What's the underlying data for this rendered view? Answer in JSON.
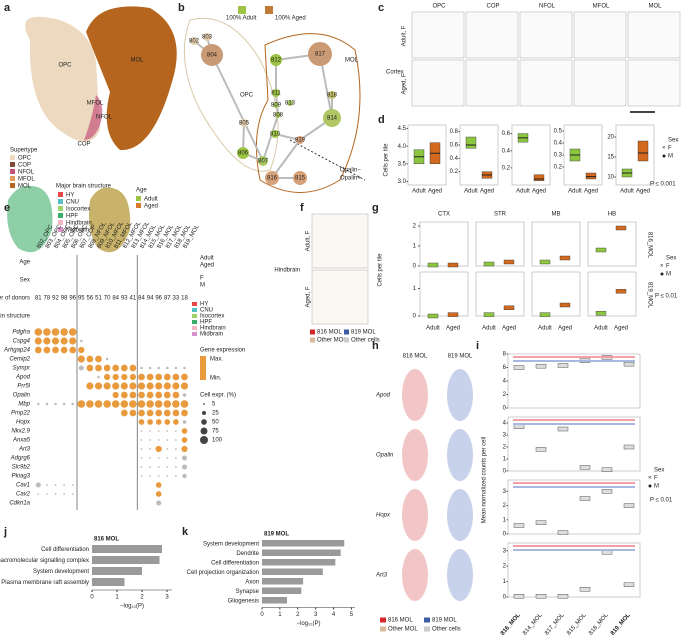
{
  "panel_labels": [
    "a",
    "b",
    "c",
    "d",
    "e",
    "f",
    "g",
    "h",
    "i",
    "j",
    "k"
  ],
  "a": {
    "clusters": [
      "OPC",
      "MOL",
      "MFOL",
      "NFOL",
      "COP"
    ],
    "supertype_title": "Supertype",
    "supertypes": [
      {
        "name": "OPC",
        "color": "#ecd9bf"
      },
      {
        "name": "COP",
        "color": "#7b4a3a"
      },
      {
        "name": "NFOL",
        "color": "#c8547a"
      },
      {
        "name": "MFOL",
        "color": "#e39a5c"
      },
      {
        "name": "MOL",
        "color": "#b5651d"
      }
    ],
    "structure_title": "Major brain structure",
    "structures": [
      {
        "name": "HY",
        "color": "#e8474a"
      },
      {
        "name": "CNU",
        "color": "#55c1c4"
      },
      {
        "name": "Isocortex",
        "color": "#9fd36b"
      },
      {
        "name": "HPF",
        "color": "#38b06c"
      },
      {
        "name": "Hindbrain",
        "color": "#f5b7c4"
      },
      {
        "name": "Midbrain",
        "color": "#d791c8"
      }
    ],
    "age_title": "Age",
    "ages": [
      {
        "name": "Adult",
        "color": "#9dc443"
      },
      {
        "name": "Aged",
        "color": "#d97a2a"
      }
    ]
  },
  "b": {
    "nodes": [
      "802",
      "803",
      "804",
      "805",
      "806",
      "807",
      "808",
      "809",
      "810",
      "811",
      "812",
      "813",
      "814",
      "815",
      "816",
      "817",
      "818",
      "819"
    ],
    "groups": [
      "OPC",
      "MOL"
    ],
    "legend": [
      "100% Adult",
      "100% Aged"
    ],
    "opalin": [
      "Opalin−",
      "Opalin+"
    ]
  },
  "c": {
    "columns": [
      "OPC",
      "COP",
      "NFOL",
      "MFOL",
      "MOL"
    ],
    "rows": [
      "Adult, F",
      "Aged, F"
    ],
    "region": "Cortex"
  },
  "d": {
    "ylabel": "Cells per tile",
    "groups": [
      "Adult",
      "Aged"
    ],
    "sex_title": "Sex",
    "sex": [
      "F",
      "M"
    ],
    "p": "P ≤ 0.001",
    "panels": [
      {
        "ylim": [
          2.9,
          4.6
        ],
        "yticks": [
          {
            "value": 3,
            "label": "3.0"
          },
          3.5,
          {
            "value": 4,
            "label": "4.0"
          },
          4.5
        ],
        "boxes": [
          [
            3.5,
            3.7,
            3.9
          ],
          [
            3.5,
            3.8,
            4.1
          ]
        ]
      },
      {
        "ylim": [
          0,
          0.9
        ],
        "yticks": [
          0.2,
          0.4,
          0.6,
          0.8
        ],
        "boxes": [
          [
            0.55,
            0.6,
            0.72
          ],
          [
            0.1,
            0.15,
            0.2
          ]
        ]
      },
      {
        "ylim": [
          0,
          0.7
        ],
        "yticks": [
          0.2,
          0.4,
          0.6
        ],
        "boxes": [
          [
            0.5,
            0.55,
            0.6
          ],
          [
            0.05,
            0.07,
            0.12
          ]
        ]
      },
      {
        "ylim": [
          0.05,
          0.55
        ],
        "yticks": [
          0.2,
          0.3,
          0.4,
          0.5
        ],
        "boxes": [
          [
            0.25,
            0.3,
            0.35
          ],
          [
            0.1,
            0.12,
            0.15
          ]
        ]
      },
      {
        "ylim": [
          8,
          23
        ],
        "yticks": [
          10,
          15,
          20
        ],
        "boxes": [
          [
            10,
            11,
            12
          ],
          [
            14,
            16,
            19
          ]
        ]
      }
    ]
  },
  "e": {
    "columns": [
      "802_OPC",
      "803_OPC",
      "804_OPC",
      "805_OPC",
      "806_OPC",
      "807_COP",
      "808_NFOL",
      "809_NFOL",
      "810_MFOL",
      "811_MFOL",
      "812_MFOL",
      "813_MFOL",
      "814_MOL",
      "815_MOL",
      "816_MOL",
      "817_MOL",
      "818_MOL",
      "819_MOL"
    ],
    "row_titles": [
      "Age",
      "Sex",
      "Number of donors",
      "Major brain structure"
    ],
    "donors": [
      81,
      78,
      92,
      98,
      96,
      95,
      56,
      51,
      70,
      84,
      93,
      41,
      84,
      94,
      96,
      87,
      33,
      18
    ],
    "age_legend": [
      "Adult",
      "Aged"
    ],
    "sex_legend": [
      "F",
      "M"
    ],
    "structures": [
      "HY",
      "CNU",
      "Isocortex",
      "HPF",
      "Hindbrain",
      "Midbrain"
    ],
    "expr_title": "Gene expression",
    "expr_range": [
      "Max.",
      "Min."
    ],
    "size_title": "Cell expr. (%)",
    "size_legend": [
      5,
      25,
      50,
      75,
      100
    ],
    "genes": [
      "Pdgfra",
      "Cspg4",
      "Arhgap24",
      "Cemip2",
      "Sympr",
      "Apod",
      "Prr5l",
      "Opalin",
      "Mbp",
      "Pmp22",
      "Hopx",
      "Nkx2.9",
      "Anxa5",
      "Art3",
      "Adgrg6",
      "Slc9b2",
      "Pkiag3",
      "Cav1",
      "Cav2",
      "Cdkn1a"
    ],
    "pct": [
      [
        90,
        90,
        90,
        90,
        90,
        0,
        0,
        0,
        0,
        0,
        0,
        0,
        0,
        0,
        0,
        0,
        0,
        0
      ],
      [
        80,
        80,
        80,
        80,
        80,
        10,
        0,
        0,
        0,
        0,
        0,
        0,
        0,
        0,
        0,
        0,
        0,
        0
      ],
      [
        70,
        70,
        70,
        70,
        70,
        60,
        0,
        0,
        0,
        0,
        0,
        0,
        0,
        0,
        0,
        0,
        0,
        0
      ],
      [
        0,
        0,
        0,
        0,
        0,
        80,
        70,
        70,
        10,
        0,
        0,
        0,
        0,
        0,
        0,
        0,
        0,
        0
      ],
      [
        0,
        0,
        0,
        0,
        0,
        40,
        70,
        70,
        70,
        70,
        70,
        70,
        10,
        10,
        10,
        10,
        10,
        10
      ],
      [
        0,
        0,
        0,
        0,
        0,
        0,
        0,
        10,
        60,
        60,
        60,
        60,
        70,
        70,
        70,
        70,
        70,
        70
      ],
      [
        0,
        0,
        0,
        0,
        0,
        0,
        80,
        80,
        80,
        80,
        80,
        80,
        80,
        80,
        80,
        80,
        80,
        80
      ],
      [
        0,
        0,
        0,
        0,
        0,
        0,
        0,
        0,
        0,
        60,
        70,
        70,
        70,
        70,
        70,
        70,
        70,
        20
      ],
      [
        10,
        10,
        10,
        10,
        10,
        90,
        90,
        90,
        90,
        90,
        90,
        90,
        90,
        90,
        90,
        90,
        90,
        90
      ],
      [
        0,
        0,
        0,
        0,
        0,
        0,
        0,
        0,
        0,
        0,
        70,
        70,
        70,
        70,
        70,
        70,
        70,
        70
      ],
      [
        0,
        0,
        0,
        0,
        0,
        0,
        0,
        0,
        0,
        0,
        0,
        0,
        50,
        50,
        50,
        50,
        50,
        20
      ],
      [
        0,
        0,
        0,
        0,
        0,
        0,
        0,
        0,
        0,
        0,
        0,
        0,
        5,
        5,
        5,
        5,
        5,
        50
      ],
      [
        0,
        0,
        0,
        0,
        0,
        0,
        0,
        0,
        0,
        0,
        0,
        0,
        5,
        5,
        5,
        5,
        5,
        50
      ],
      [
        0,
        0,
        0,
        0,
        0,
        0,
        0,
        0,
        0,
        0,
        0,
        0,
        5,
        5,
        60,
        5,
        5,
        60
      ],
      [
        0,
        0,
        0,
        0,
        0,
        0,
        0,
        0,
        0,
        0,
        0,
        0,
        5,
        5,
        5,
        5,
        5,
        40
      ],
      [
        0,
        0,
        0,
        0,
        0,
        0,
        0,
        0,
        0,
        0,
        0,
        0,
        5,
        5,
        5,
        5,
        5,
        40
      ],
      [
        0,
        0,
        0,
        0,
        0,
        0,
        0,
        0,
        0,
        0,
        0,
        0,
        5,
        5,
        5,
        5,
        5,
        30
      ],
      [
        40,
        5,
        5,
        5,
        5,
        0,
        0,
        0,
        0,
        0,
        0,
        0,
        0,
        0,
        50,
        0,
        0,
        0
      ],
      [
        5,
        5,
        5,
        5,
        5,
        0,
        0,
        0,
        0,
        0,
        0,
        0,
        0,
        0,
        50,
        0,
        0,
        0
      ],
      [
        0,
        0,
        0,
        0,
        0,
        0,
        0,
        0,
        0,
        0,
        0,
        0,
        0,
        0,
        40,
        0,
        0,
        0
      ]
    ]
  },
  "f": {
    "rows": [
      "Adult, F",
      "Aged, F"
    ],
    "region": "Hindbrain",
    "legend": [
      {
        "name": "816 MOL",
        "color": "#d62728"
      },
      {
        "name": "819 MOL",
        "color": "#3b5ba5"
      },
      {
        "name": "Other MOL",
        "color": "#d9b99b"
      },
      {
        "name": "Other cells",
        "color": "#cccccc"
      }
    ]
  },
  "g": {
    "regions": [
      "CTX",
      "STR",
      "MB",
      "HB"
    ],
    "rows": [
      "816_MOL",
      "819_MOL"
    ],
    "ylabel": "Cells per tile",
    "groups": [
      "Adult",
      "Aged"
    ],
    "sex_title": "Sex",
    "sex": [
      "F",
      "M"
    ],
    "p": "P ≤ 0.01",
    "ylims": [
      [
        0,
        2.2
      ],
      [
        0,
        1.6
      ]
    ],
    "yticks": [
      [
        0,
        1,
        2
      ],
      [
        0,
        1
      ]
    ],
    "medians": [
      [
        [
          0.05,
          0.05
        ],
        [
          0.1,
          0.2
        ],
        [
          0.2,
          0.4
        ],
        [
          0.8,
          1.9
        ]
      ],
      [
        [
          0,
          0.05
        ],
        [
          0.05,
          0.3
        ],
        [
          0.05,
          0.4
        ],
        [
          0.1,
          0.9
        ]
      ]
    ]
  },
  "h": {
    "columns": [
      "816 MOL",
      "819 MOL"
    ],
    "genes": [
      "Apod",
      "Opalin",
      "Hopx",
      "Art3"
    ],
    "legend": [
      "816 MOL",
      "819 MOL",
      "Other MOL",
      "Other cells"
    ]
  },
  "i": {
    "categories": [
      "816_MOL",
      "814_MOL",
      "817_MOL",
      "815_MOL",
      "818_MOL",
      "819_MOL"
    ],
    "ylabel": "Mean normalized counts per cell",
    "sex_title": "Sex",
    "sex": [
      "F",
      "M"
    ],
    "p": "P ≤ 0.01",
    "panels": [
      {
        "ylim": [
          0,
          8
        ],
        "yticks": [
          0,
          2,
          4,
          6,
          8
        ],
        "medians": [
          6,
          6.2,
          6.3,
          7,
          7.5,
          6.5
        ]
      },
      {
        "ylim": [
          0,
          4.5
        ],
        "yticks": [
          0,
          1,
          2,
          3,
          4
        ],
        "medians": [
          3.7,
          1.8,
          3.5,
          0.3,
          0.1,
          2
        ]
      },
      {
        "ylim": [
          0,
          3.8
        ],
        "yticks": [
          0,
          1,
          2,
          3
        ],
        "medians": [
          0.6,
          0.8,
          0.1,
          2.5,
          3,
          2
        ]
      },
      {
        "ylim": [
          0,
          3.5
        ],
        "yticks": [
          0,
          1,
          2,
          3
        ],
        "medians": [
          0.05,
          0.05,
          0.05,
          0.5,
          2.9,
          0.8
        ]
      }
    ]
  },
  "j": {
    "title": "816 MOL",
    "categories": [
      "Cell differentiation",
      "Caveolar macromolecular signalling complex",
      "System development",
      "Plasma membrane raft assembly"
    ],
    "values": [
      2.8,
      2.7,
      2.0,
      1.3
    ],
    "xlim": [
      0,
      3.2
    ],
    "xticks": [
      0,
      1,
      2,
      3
    ],
    "xlabel": "−log₁₀(P)",
    "color": "#9a9a9a"
  },
  "k": {
    "title": "819 MOL",
    "categories": [
      "System development",
      "Dendrite",
      "Cell differentiation",
      "Cell projection organization",
      "Axon",
      "Synapse",
      "Gliogenesis"
    ],
    "values": [
      4.6,
      4.4,
      4.1,
      3.4,
      2.3,
      2.2,
      1.4
    ],
    "xlim": [
      0,
      5.2
    ],
    "xticks": [
      0,
      1,
      2,
      3,
      4,
      5
    ],
    "xlabel": "−log₁₀(P)",
    "color": "#9a9a9a"
  }
}
